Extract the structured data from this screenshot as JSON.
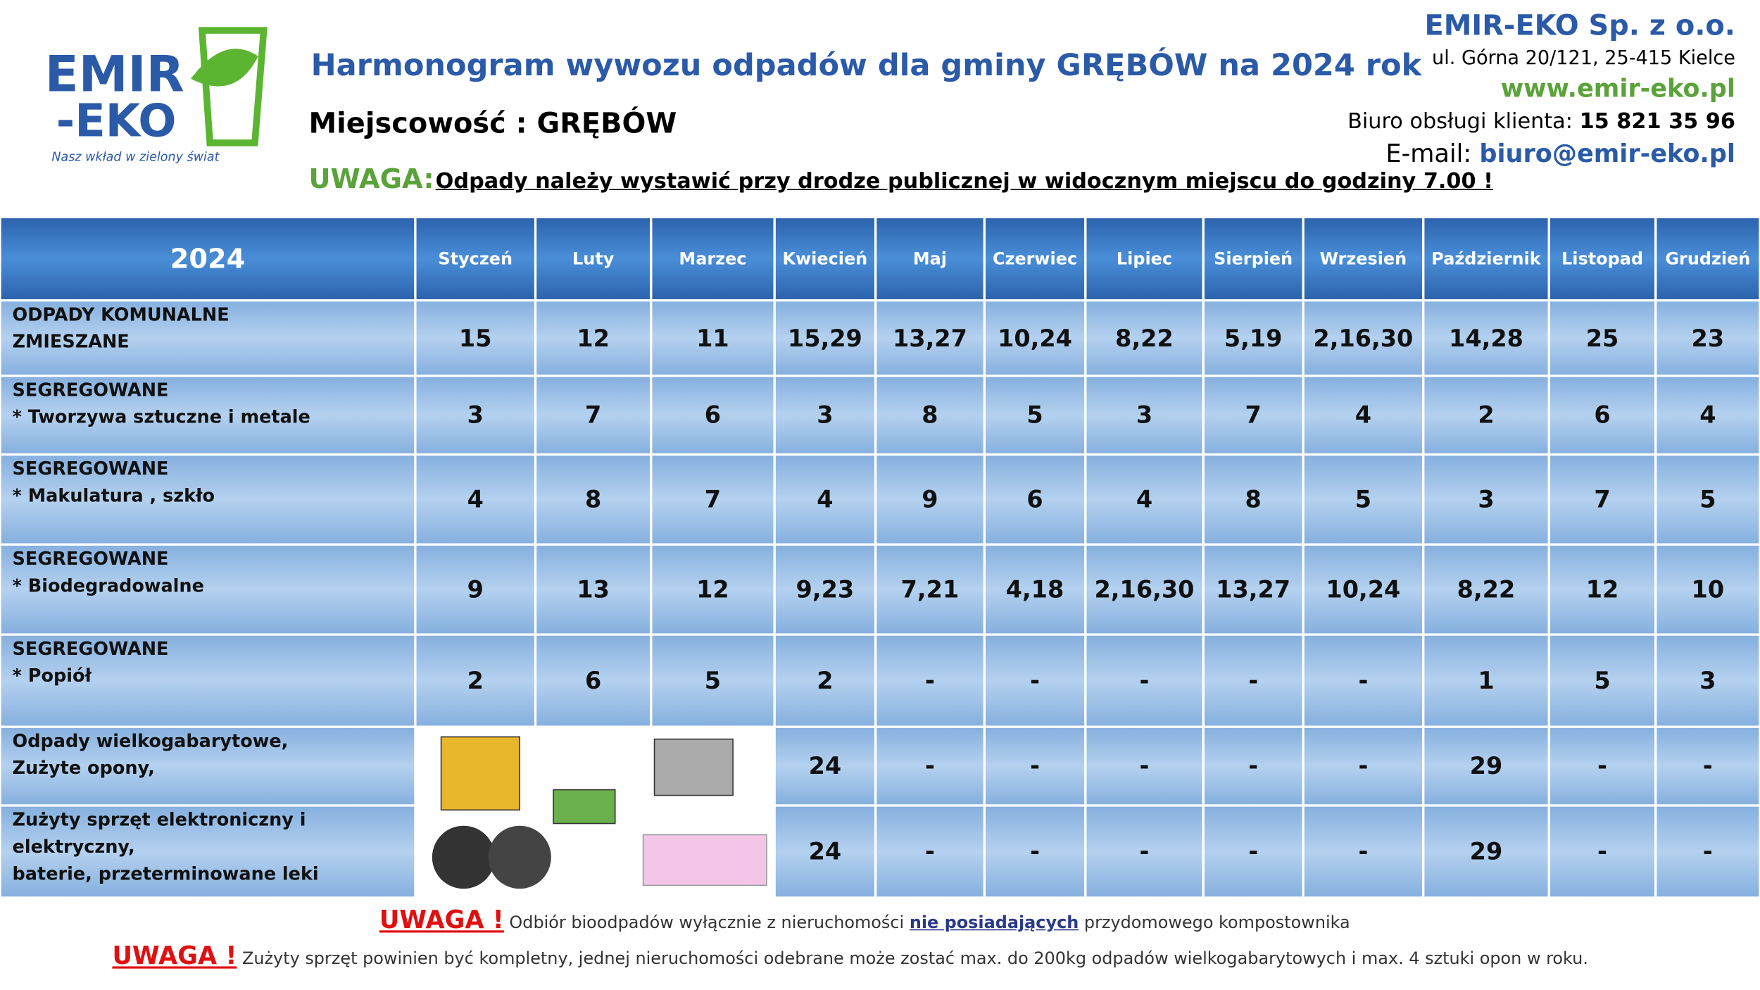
{
  "header": {
    "logo_top": "EMIR",
    "logo_bottom": "-EKO",
    "logo_slogan": "Nasz wkład w zielony świat",
    "title": "Harmonogram wywozu odpadów dla gminy GRĘBÓW na 2024 rok",
    "locality": "Miejscowość : GRĘBÓW",
    "warning_label": "UWAGA:",
    "warning_text": "Odpady należy wystawić przy drodze publicznej w widocznym miejscu do godziny 7.00 !",
    "company": "EMIR-EKO  Sp. z o.o.",
    "address": "ul. Górna 20/121, 25-415 Kielce",
    "website": "www.emir-eko.pl",
    "phone_label": "Biuro obsługi klienta:",
    "phone": "15 821 35 96",
    "email_label": "E-mail:",
    "email": "biuro@emir-eko.pl"
  },
  "table": {
    "year": "2024",
    "months": [
      "Styczeń",
      "Luty",
      "Marzec",
      "Kwiecień",
      "Maj",
      "Czerwiec",
      "Lipiec",
      "Sierpień",
      "Wrzesień",
      "Październik",
      "Listopad",
      "Grudzień"
    ],
    "rows": [
      {
        "label": [
          "ODPADY KOMUNALNE",
          "ZMIESZANE"
        ],
        "cells": [
          "15",
          "12",
          "11",
          "15,29",
          "13,27",
          "10,24",
          "8,22",
          "5,19",
          "2,16,30",
          "14,28",
          "25",
          "23"
        ]
      },
      {
        "label": [
          "SEGREGOWANE",
          "* Tworzywa sztuczne i metale"
        ],
        "cells": [
          "3",
          "7",
          "6",
          "3",
          "8",
          "5",
          "3",
          "7",
          "4",
          "2",
          "6",
          "4"
        ]
      },
      {
        "label": [
          "SEGREGOWANE",
          "* Makulatura , szkło"
        ],
        "cells": [
          "4",
          "8",
          "7",
          "4",
          "9",
          "6",
          "4",
          "8",
          "5",
          "3",
          "7",
          "5"
        ]
      },
      {
        "label": [
          "SEGREGOWANE",
          "* Biodegradowalne"
        ],
        "cells": [
          "9",
          "13",
          "12",
          "9,23",
          "7,21",
          "4,18",
          "2,16,30",
          "13,27",
          "10,24",
          "8,22",
          "12",
          "10"
        ]
      },
      {
        "label": [
          "SEGREGOWANE",
          "* Popiół"
        ],
        "cells": [
          "2",
          "6",
          "5",
          "2",
          "-",
          "-",
          "-",
          "-",
          "-",
          "1",
          "5",
          "3"
        ]
      },
      {
        "label": [
          "Odpady wielkogabarytowe,",
          "Zużyte opony,"
        ],
        "cells": [
          null,
          null,
          null,
          "24",
          "-",
          "-",
          "-",
          "-",
          "-",
          "29",
          "-",
          "-"
        ]
      },
      {
        "label": [
          "Zużyty sprzęt elektroniczny i elektryczny,",
          "baterie, przeterminowane leki"
        ],
        "cells": [
          null,
          null,
          null,
          "24",
          "-",
          "-",
          "-",
          "-",
          "-",
          "29",
          "-",
          "-"
        ]
      }
    ]
  },
  "footer": [
    {
      "label": "UWAGA !",
      "text": "Odbiór bioodpadów wyłącznie z nieruchomości ",
      "emphasis": "nie posiadających",
      "rest": " przydomowego kompostownika"
    },
    {
      "label": "UWAGA !",
      "text": "Zużyty sprzęt powinien być kompletny, jednej nieruchomości odebrane może zostać max. do 200kg odpadów wielkogabarytowych i max. 4 sztuki opon w roku."
    }
  ]
}
